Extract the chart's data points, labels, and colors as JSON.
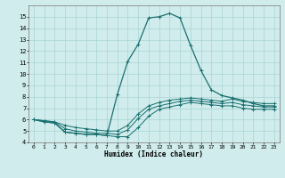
{
  "title": "",
  "xlabel": "Humidex (Indice chaleur)",
  "ylabel": "",
  "bg_color": "#d0ecec",
  "grid_color": "#aad4d4",
  "line_color": "#1a7070",
  "xlim": [
    -0.5,
    23.5
  ],
  "ylim": [
    4,
    16
  ],
  "xticks": [
    0,
    1,
    2,
    3,
    4,
    5,
    6,
    7,
    8,
    9,
    10,
    11,
    12,
    13,
    14,
    15,
    16,
    17,
    18,
    19,
    20,
    21,
    22,
    23
  ],
  "yticks": [
    4,
    5,
    6,
    7,
    8,
    9,
    10,
    11,
    12,
    13,
    14,
    15
  ],
  "line1_x": [
    0,
    1,
    2,
    3,
    4,
    5,
    6,
    7,
    8,
    9,
    10,
    11,
    12,
    13,
    14,
    15,
    16,
    17,
    18,
    19,
    20,
    21,
    22,
    23
  ],
  "line1_y": [
    6.0,
    5.8,
    5.7,
    4.9,
    4.8,
    4.7,
    4.7,
    4.6,
    4.5,
    4.5,
    5.3,
    6.3,
    6.9,
    7.1,
    7.3,
    7.5,
    7.4,
    7.3,
    7.2,
    7.2,
    7.0,
    6.9,
    6.9,
    6.9
  ],
  "line2_x": [
    0,
    1,
    2,
    3,
    4,
    5,
    6,
    7,
    8,
    9,
    10,
    11,
    12,
    13,
    14,
    15,
    16,
    17,
    18,
    19,
    20,
    21,
    22,
    23
  ],
  "line2_y": [
    6.0,
    5.9,
    5.8,
    5.2,
    5.0,
    4.9,
    4.8,
    4.8,
    4.7,
    5.1,
    6.1,
    6.9,
    7.2,
    7.4,
    7.6,
    7.7,
    7.6,
    7.5,
    7.4,
    7.5,
    7.3,
    7.2,
    7.1,
    7.1
  ],
  "line3_x": [
    0,
    1,
    2,
    3,
    4,
    5,
    6,
    7,
    8,
    9,
    10,
    11,
    12,
    13,
    14,
    15,
    16,
    17,
    18,
    19,
    20,
    21,
    22,
    23
  ],
  "line3_y": [
    6.0,
    5.9,
    5.8,
    5.5,
    5.3,
    5.2,
    5.1,
    5.0,
    5.0,
    5.5,
    6.5,
    7.2,
    7.5,
    7.7,
    7.8,
    7.9,
    7.8,
    7.7,
    7.6,
    7.8,
    7.6,
    7.5,
    7.4,
    7.4
  ],
  "line4_x": [
    0,
    1,
    2,
    3,
    4,
    5,
    6,
    7,
    8,
    9,
    10,
    11,
    12,
    13,
    14,
    15,
    16,
    17,
    18,
    19,
    20,
    21,
    22,
    23
  ],
  "line4_y": [
    6.0,
    5.8,
    5.7,
    4.9,
    4.8,
    4.7,
    4.7,
    4.6,
    8.2,
    11.1,
    12.6,
    14.9,
    15.0,
    15.3,
    14.9,
    12.5,
    10.3,
    8.6,
    8.1,
    7.9,
    7.7,
    7.4,
    7.2,
    7.2
  ]
}
